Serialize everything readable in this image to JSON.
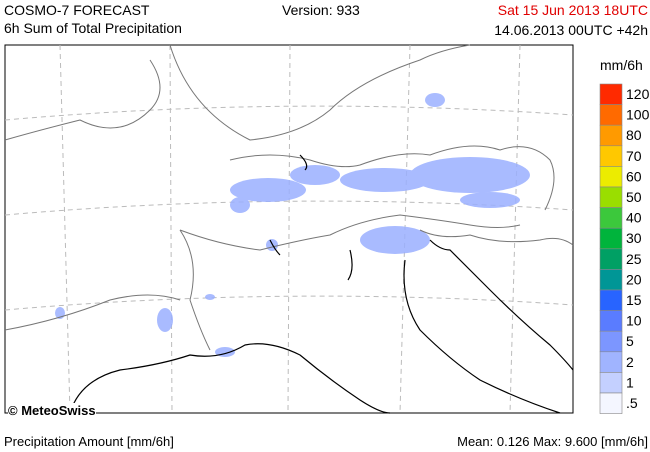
{
  "header": {
    "title": "COSMO-7 FORECAST",
    "subtitle": "6h Sum of Total Precipitation",
    "version": "Version: 933",
    "valid_time": "Sat 15 Jun 2013 18UTC",
    "run_time": "14.06.2013 00UTC +42h"
  },
  "legend": {
    "unit": "mm/6h",
    "items": [
      {
        "label": "120",
        "color": "#ff2a00"
      },
      {
        "label": "100",
        "color": "#ff6a00"
      },
      {
        "label": "80",
        "color": "#ff9a00"
      },
      {
        "label": "70",
        "color": "#ffc800"
      },
      {
        "label": "60",
        "color": "#ecec00"
      },
      {
        "label": "50",
        "color": "#9ade00"
      },
      {
        "label": "40",
        "color": "#3cc83c"
      },
      {
        "label": "30",
        "color": "#00b43c"
      },
      {
        "label": "25",
        "color": "#00a064"
      },
      {
        "label": "20",
        "color": "#009696"
      },
      {
        "label": "15",
        "color": "#2864ff"
      },
      {
        "label": "10",
        "color": "#5a7cff"
      },
      {
        "label": "5",
        "color": "#7c96ff"
      },
      {
        "label": "2",
        "color": "#a0b4ff"
      },
      {
        "label": "1",
        "color": "#c4d0ff"
      },
      {
        "label": ".5",
        "color": "#f4f6ff"
      }
    ]
  },
  "copyright": "© MeteoSwiss",
  "footer": {
    "left": "Precipitation Amount [mm/6h]",
    "mean_label": "Mean:",
    "mean": "0.126",
    "max_label": "Max:",
    "max": "9.600",
    "unit": "[mm/6h]"
  }
}
